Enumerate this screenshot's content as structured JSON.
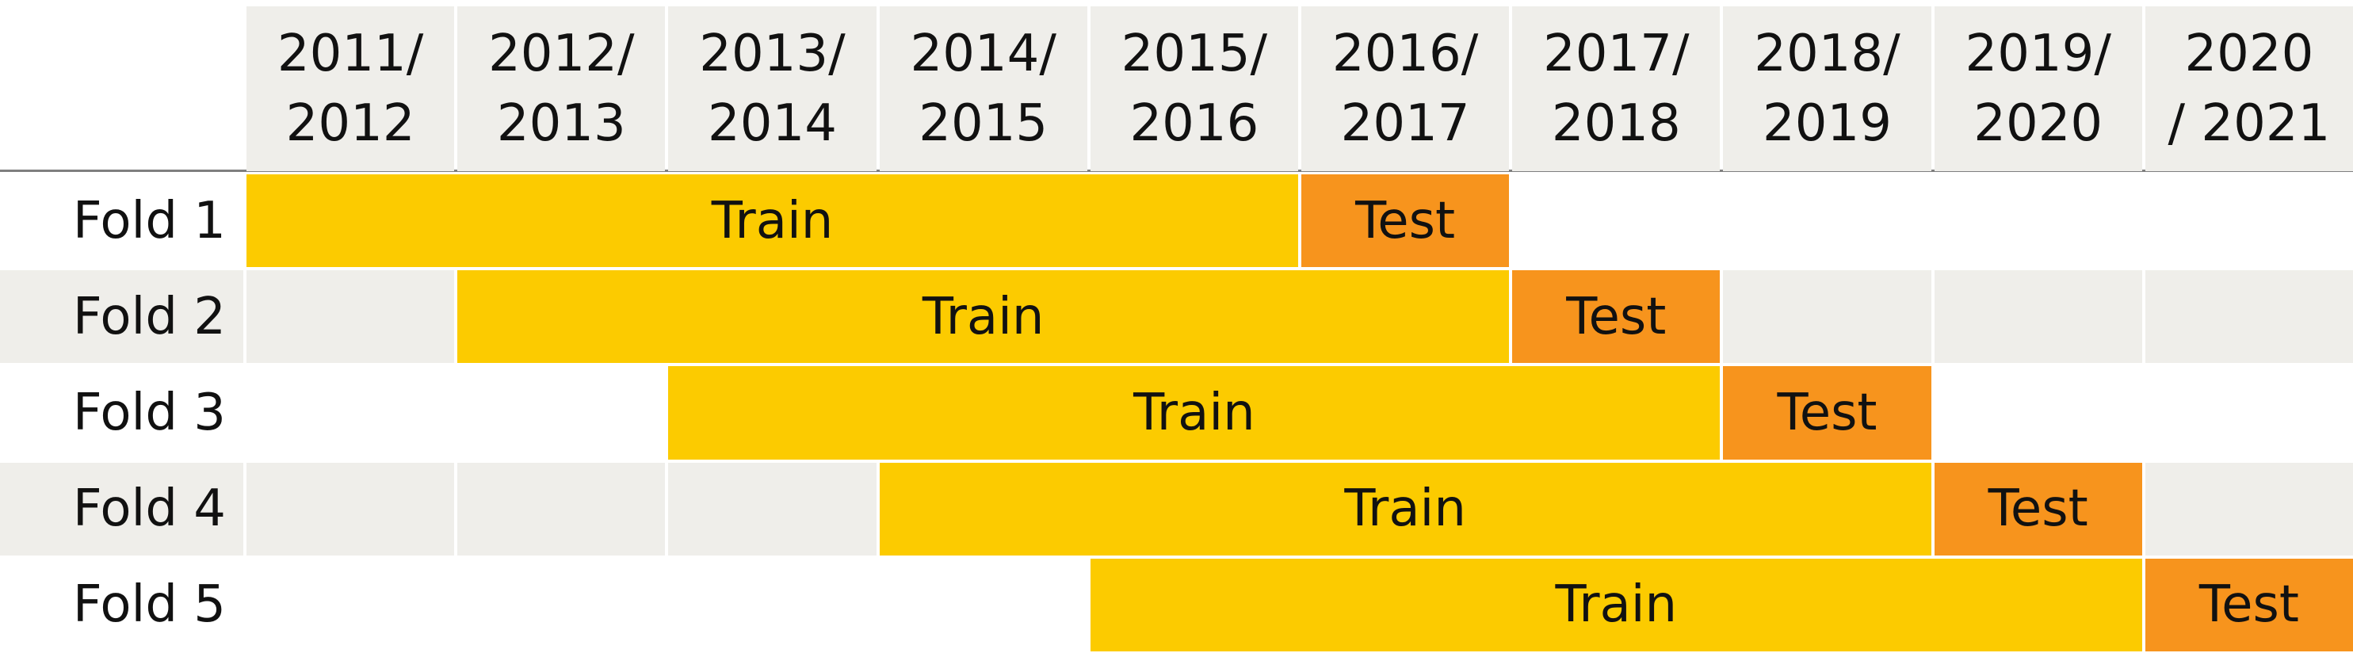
{
  "columns": [
    "2011/\n2012",
    "2012/\n2013",
    "2013/\n2014",
    "2014/\n2015",
    "2015/\n2016",
    "2016/\n2017",
    "2017/\n2018",
    "2018/\n2019",
    "2019/\n2020",
    "2020\n/ 2021"
  ],
  "folds": [
    {
      "label": "Fold 1",
      "train_from": 0,
      "train_to": 4,
      "test": 5,
      "train_label": "Train",
      "test_label": "Test"
    },
    {
      "label": "Fold 2",
      "train_from": 1,
      "train_to": 5,
      "test": 6,
      "train_label": "Train",
      "test_label": "Test"
    },
    {
      "label": "Fold 3",
      "train_from": 2,
      "train_to": 6,
      "test": 7,
      "train_label": "Train",
      "test_label": "Test"
    },
    {
      "label": "Fold 4",
      "train_from": 3,
      "train_to": 7,
      "test": 8,
      "train_label": "Train",
      "test_label": "Test"
    },
    {
      "label": "Fold 5",
      "train_from": 4,
      "train_to": 8,
      "test": 9,
      "train_label": "Train",
      "test_label": "Test"
    }
  ],
  "colors": {
    "header_bg": "#efeeea",
    "stripe": "#efeeea",
    "train": "#fccb00",
    "test": "#f7941d"
  }
}
